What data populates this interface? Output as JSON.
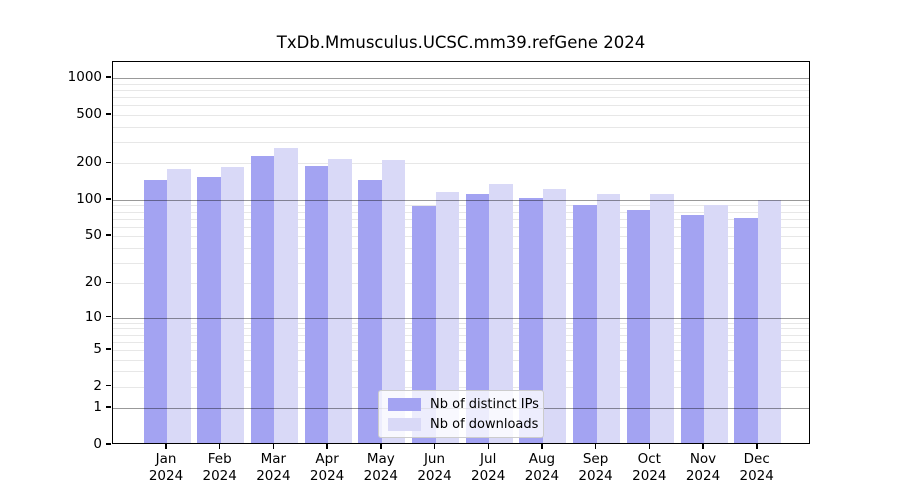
{
  "title": "TxDb.Mmusculus.UCSC.mm39.refGene 2024",
  "colors": {
    "ips_bar": "#a3a3f2",
    "downloads_bar": "#d9d9f7",
    "grid_minor": "#e7e7e7",
    "grid_major": "#999999",
    "axis": "#000000"
  },
  "legend": {
    "items": [
      {
        "label": "Nb of distinct IPs",
        "series_key": "ips"
      },
      {
        "label": "Nb of downloads",
        "series_key": "downloads"
      }
    ]
  },
  "chart_data": {
    "type": "bar",
    "title": "TxDb.Mmusculus.UCSC.mm39.refGene 2024",
    "categories": [
      "Jan",
      "Feb",
      "Mar",
      "Apr",
      "May",
      "Jun",
      "Jul",
      "Aug",
      "Sep",
      "Oct",
      "Nov",
      "Dec"
    ],
    "year_label": "2024",
    "series": [
      {
        "name": "Nb of distinct IPs",
        "key": "ips",
        "values": [
          139,
          148,
          222,
          182,
          141,
          85,
          108,
          100,
          87,
          80,
          72,
          68
        ]
      },
      {
        "name": "Nb of downloads",
        "key": "downloads",
        "values": [
          173,
          178,
          255,
          210,
          203,
          112,
          130,
          118,
          108,
          107,
          87,
          96
        ]
      }
    ],
    "xlabel": "",
    "ylabel": "",
    "y_scale": "log1p",
    "y_ticks": [
      0,
      1,
      2,
      5,
      10,
      20,
      50,
      100,
      200,
      500,
      1000
    ],
    "ylim": [
      0,
      1350
    ],
    "grid": true,
    "legend_position": "lower center"
  }
}
